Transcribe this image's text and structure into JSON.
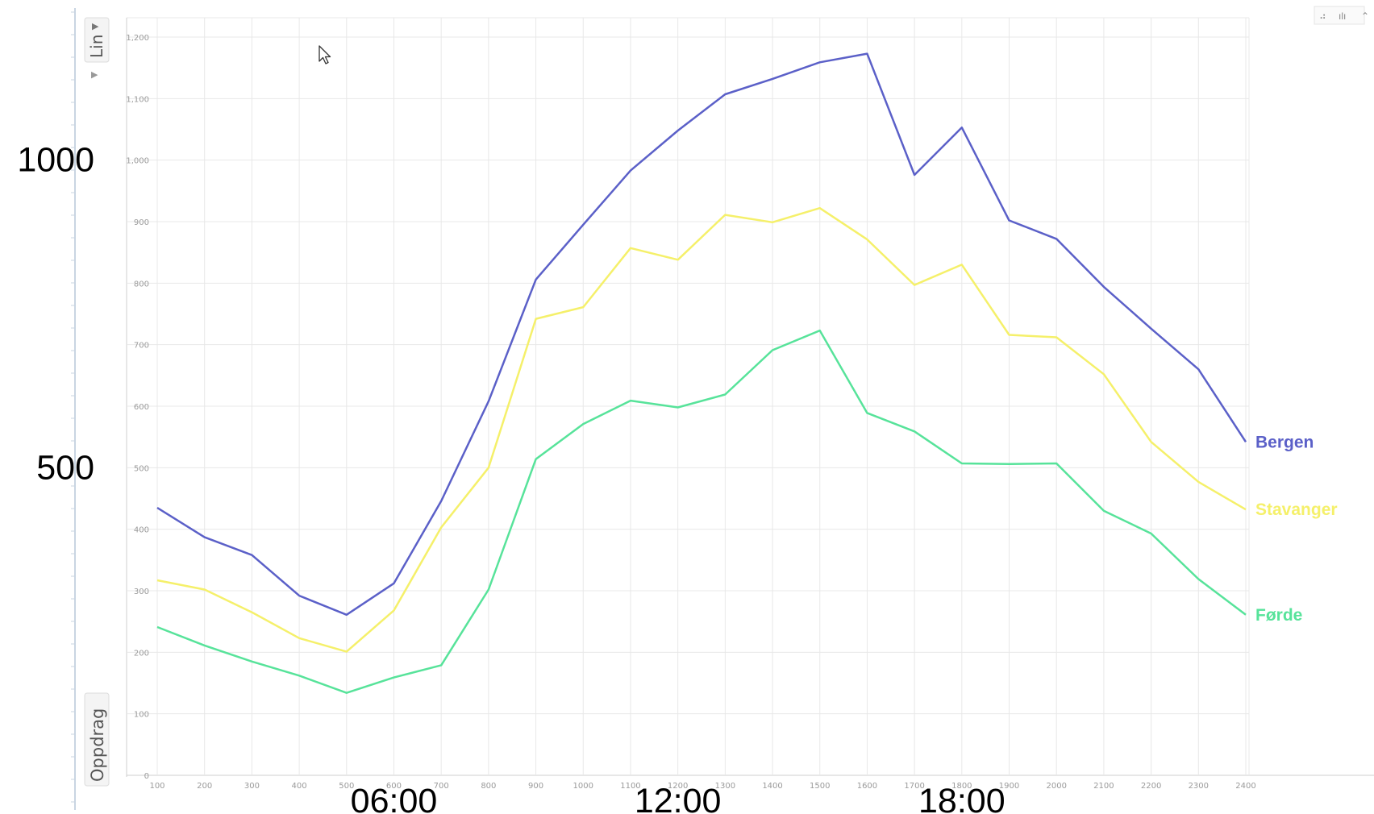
{
  "toolbar": {
    "scale_label": "Lin",
    "measure_label": "Oppdrag"
  },
  "big_y_labels": [
    {
      "value": 1000,
      "text": "1000"
    },
    {
      "value": 500,
      "text": "500"
    }
  ],
  "big_x_labels": [
    {
      "x": 600,
      "text": "06:00"
    },
    {
      "x": 1200,
      "text": "12:00"
    },
    {
      "x": 1800,
      "text": "18:00"
    }
  ],
  "colors": {
    "grid": "#e8e8e8",
    "axis": "#cfcfcf",
    "tick_text": "#9a9a9a",
    "toolbar_text": "#555555"
  },
  "chart_data": {
    "type": "line",
    "x": [
      100,
      200,
      300,
      400,
      500,
      600,
      700,
      800,
      900,
      1000,
      1100,
      1200,
      1300,
      1400,
      1500,
      1600,
      1700,
      1800,
      1900,
      2000,
      2100,
      2200,
      2300,
      2400
    ],
    "x_tick_labels": [
      "100",
      "200",
      "300",
      "400",
      "500",
      "600",
      "700",
      "800",
      "900",
      "1000",
      "1100",
      "1200",
      "1300",
      "1400",
      "1500",
      "1600",
      "1700",
      "1800",
      "1900",
      "2000",
      "2100",
      "2200",
      "2300",
      "2400"
    ],
    "y_ticks": [
      0,
      100,
      200,
      300,
      400,
      500,
      600,
      700,
      800,
      900,
      1000,
      1100,
      1200
    ],
    "y_tick_labels": [
      "0",
      "100",
      "200",
      "300",
      "400",
      "500",
      "600",
      "700",
      "800",
      "900",
      "1,000",
      "1,100",
      "1,200"
    ],
    "xlim": [
      100,
      2400
    ],
    "ylim": [
      0,
      1200
    ],
    "grid": true,
    "legend": "end-of-line labels on the right",
    "series": [
      {
        "name": "Bergen",
        "color": "#5b60c8",
        "values": [
          435,
          387,
          358,
          292,
          261,
          312,
          446,
          608,
          806,
          895,
          983,
          1048,
          1107,
          1132,
          1159,
          1173,
          976,
          1053,
          902,
          872,
          794,
          726,
          660,
          542
        ]
      },
      {
        "name": "Stavanger",
        "color": "#f5f06a",
        "values": [
          317,
          302,
          265,
          223,
          201,
          268,
          403,
          500,
          742,
          761,
          857,
          838,
          911,
          899,
          922,
          871,
          797,
          830,
          716,
          712,
          652,
          542,
          477,
          432
        ]
      },
      {
        "name": "Førde",
        "color": "#57e39a",
        "values": [
          241,
          211,
          185,
          162,
          134,
          159,
          179,
          302,
          514,
          571,
          609,
          598,
          619,
          691,
          723,
          589,
          559,
          507,
          506,
          507,
          430,
          393,
          319,
          261
        ]
      }
    ]
  }
}
